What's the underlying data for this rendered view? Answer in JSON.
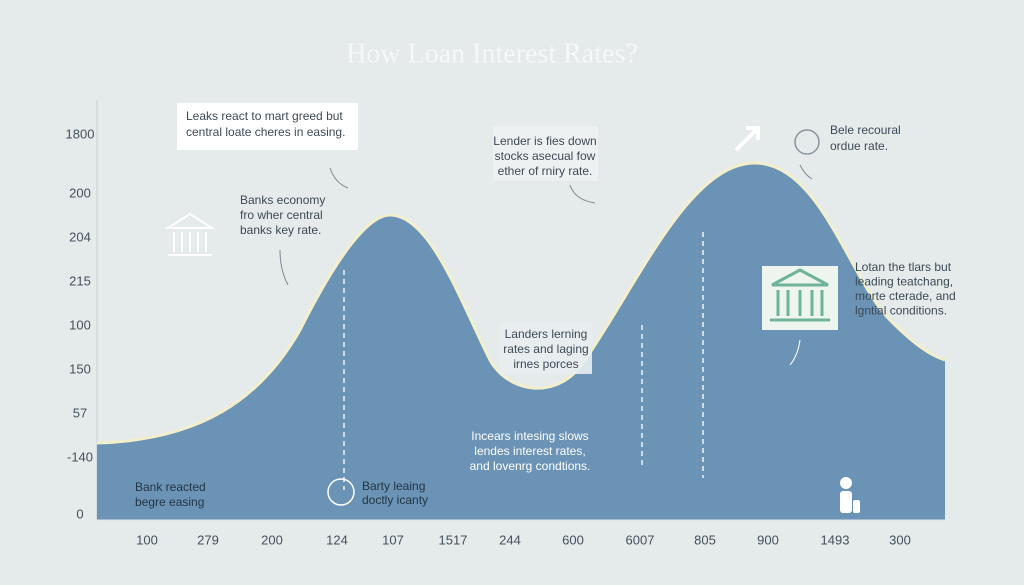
{
  "title": "How Loan Interest Rates?",
  "y_axis_labels": [
    "1800",
    "200",
    "204",
    "215",
    "100",
    "150",
    "57",
    "-140",
    "0"
  ],
  "x_axis_labels": [
    "100",
    "279",
    "200",
    "124",
    "107",
    "1517",
    "244",
    "600",
    "6007",
    "805",
    "900",
    "1493",
    "300"
  ],
  "annotations": [
    {
      "lines": [
        "Leaks react to mart greed but",
        "central loate cheres in easing."
      ]
    },
    {
      "lines": [
        "Banks economy",
        "fro wher central",
        "banks key rate."
      ]
    },
    {
      "lines": [
        "Lender is fies down",
        "stocks asecual fow",
        "ether of rniry rate."
      ]
    },
    {
      "lines": [
        "Bele recoural",
        "ordue rate."
      ]
    },
    {
      "lines": [
        "Lotan the tlars but",
        "leading teatchang,",
        "morte cterade, and",
        "lgntial conditions."
      ]
    },
    {
      "lines": [
        "Landers lerning",
        "rates and laging",
        "irnes porces"
      ]
    },
    {
      "lines": [
        "Incears intesing slows",
        "lendes interest rates,",
        "and lovenrg condtions."
      ]
    },
    {
      "lines": [
        "Bank reacted",
        "begre easing"
      ]
    },
    {
      "lines": [
        "Barty leaing",
        "doctly icanty"
      ]
    }
  ]
}
